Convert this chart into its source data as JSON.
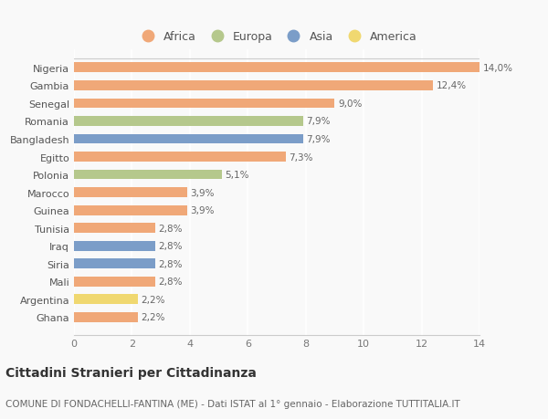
{
  "countries": [
    "Nigeria",
    "Gambia",
    "Senegal",
    "Romania",
    "Bangladesh",
    "Egitto",
    "Polonia",
    "Marocco",
    "Guinea",
    "Tunisia",
    "Iraq",
    "Siria",
    "Mali",
    "Argentina",
    "Ghana"
  ],
  "values": [
    14.0,
    12.4,
    9.0,
    7.9,
    7.9,
    7.3,
    5.1,
    3.9,
    3.9,
    2.8,
    2.8,
    2.8,
    2.8,
    2.2,
    2.2
  ],
  "continents": [
    "Africa",
    "Africa",
    "Africa",
    "Europa",
    "Asia",
    "Africa",
    "Europa",
    "Africa",
    "Africa",
    "Africa",
    "Asia",
    "Asia",
    "Africa",
    "America",
    "Africa"
  ],
  "colors": {
    "Africa": "#F0A878",
    "Europa": "#B5C88C",
    "Asia": "#7B9DC8",
    "America": "#F0D870"
  },
  "legend_order": [
    "Africa",
    "Europa",
    "Asia",
    "America"
  ],
  "xlim": [
    0,
    14
  ],
  "xticks": [
    0,
    2,
    4,
    6,
    8,
    10,
    12,
    14
  ],
  "title": "Cittadini Stranieri per Cittadinanza",
  "subtitle": "COMUNE DI FONDACHELLI-FANTINA (ME) - Dati ISTAT al 1° gennaio - Elaborazione TUTTITALIA.IT",
  "bg_color": "#f9f9f9",
  "bar_height": 0.55,
  "label_fontsize": 7.5,
  "tick_fontsize": 8,
  "title_fontsize": 10,
  "subtitle_fontsize": 7.5,
  "legend_fontsize": 9
}
